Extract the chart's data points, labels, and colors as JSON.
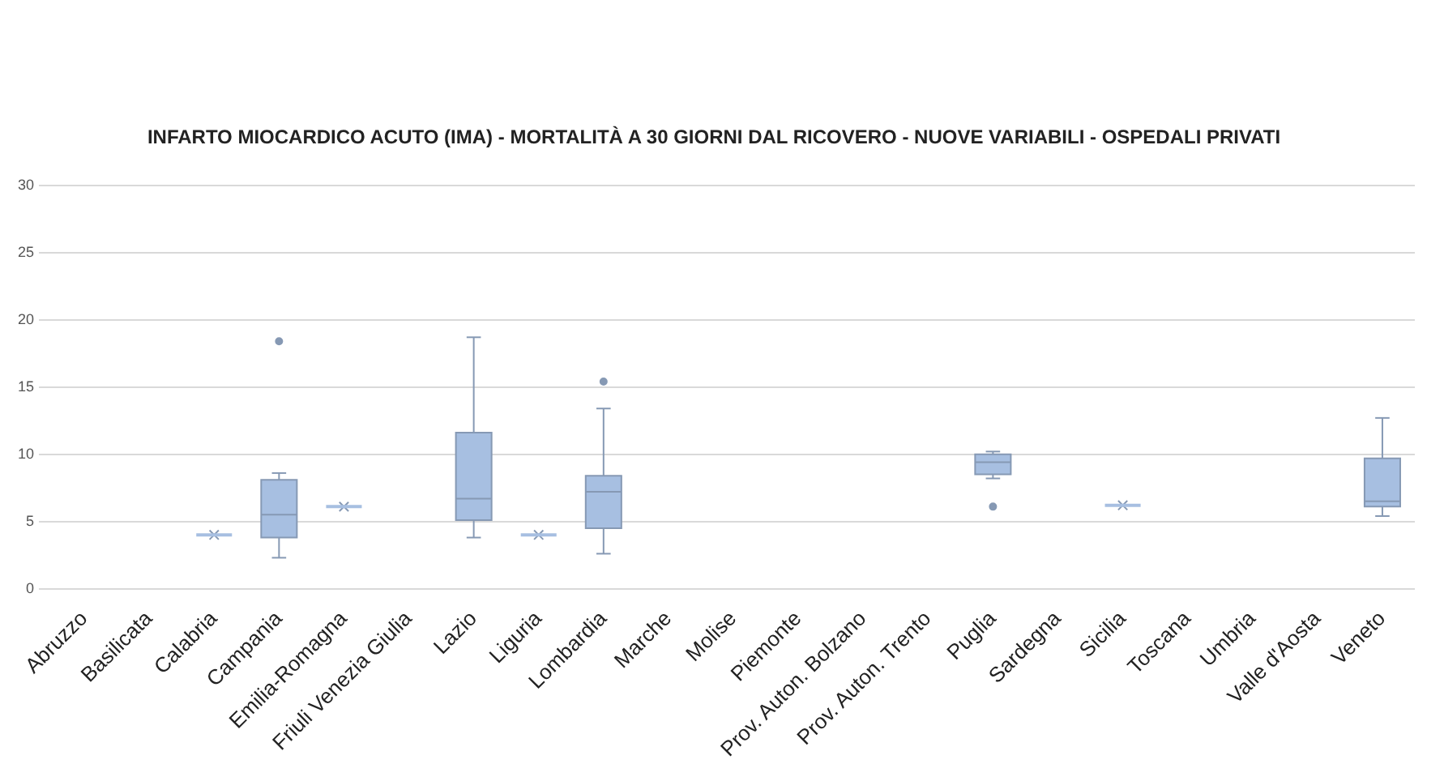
{
  "chart_data": {
    "type": "box",
    "title": "INFARTO MIOCARDICO ACUTO (IMA) - MORTALITÀ A 30 GIORNI DAL RICOVERO - NUOVE VARIABILI - OSPEDALI PRIVATI",
    "categories": [
      "Abruzzo",
      "Basilicata",
      "Calabria",
      "Campania",
      "Emilia-Romagna",
      "Friuli Venezia Giulia",
      "Lazio",
      "Liguria",
      "Lombardia",
      "Marche",
      "Molise",
      "Piemonte",
      "Prov. Auton. Bolzano",
      "Prov. Auton. Trento",
      "Puglia",
      "Sardegna",
      "Sicilia",
      "Toscana",
      "Umbria",
      "Valle d'Aosta",
      "Veneto"
    ],
    "boxes": [
      null,
      null,
      {
        "low": 4.0,
        "q1": 4.0,
        "median": 4.0,
        "q3": 4.0,
        "high": 4.0,
        "mean": 4.0
      },
      {
        "low": 2.3,
        "q1": 3.8,
        "median": 5.5,
        "q3": 8.1,
        "high": 8.6,
        "mean": 7.1,
        "outliers": [
          18.4
        ]
      },
      {
        "low": 6.1,
        "q1": 6.1,
        "median": 6.1,
        "q3": 6.1,
        "high": 6.1,
        "mean": 6.1
      },
      null,
      {
        "low": 3.8,
        "q1": 5.1,
        "median": 6.7,
        "q3": 11.6,
        "high": 18.7,
        "mean": 9.0
      },
      {
        "low": 4.0,
        "q1": 4.0,
        "median": 4.0,
        "q3": 4.0,
        "high": 4.0,
        "mean": 4.0
      },
      {
        "low": 2.6,
        "q1": 4.5,
        "median": 7.2,
        "q3": 8.4,
        "high": 13.4,
        "mean": 7.4,
        "outliers": [
          15.4
        ]
      },
      null,
      null,
      null,
      null,
      null,
      {
        "low": 8.2,
        "q1": 8.5,
        "median": 9.4,
        "q3": 10.0,
        "high": 10.2,
        "mean": 9.0,
        "outliers": [
          6.1
        ]
      },
      null,
      {
        "low": 6.2,
        "q1": 6.2,
        "median": 6.2,
        "q3": 6.2,
        "high": 6.2,
        "mean": 6.2
      },
      null,
      null,
      null,
      {
        "low": 5.4,
        "q1": 6.1,
        "median": 6.5,
        "q3": 9.7,
        "high": 12.7,
        "mean": 8.3
      }
    ],
    "color": "#a7bfe1",
    "ylim": [
      0,
      30
    ],
    "yticks": [
      0,
      5,
      10,
      15,
      20,
      25,
      30
    ],
    "grid": "y"
  }
}
